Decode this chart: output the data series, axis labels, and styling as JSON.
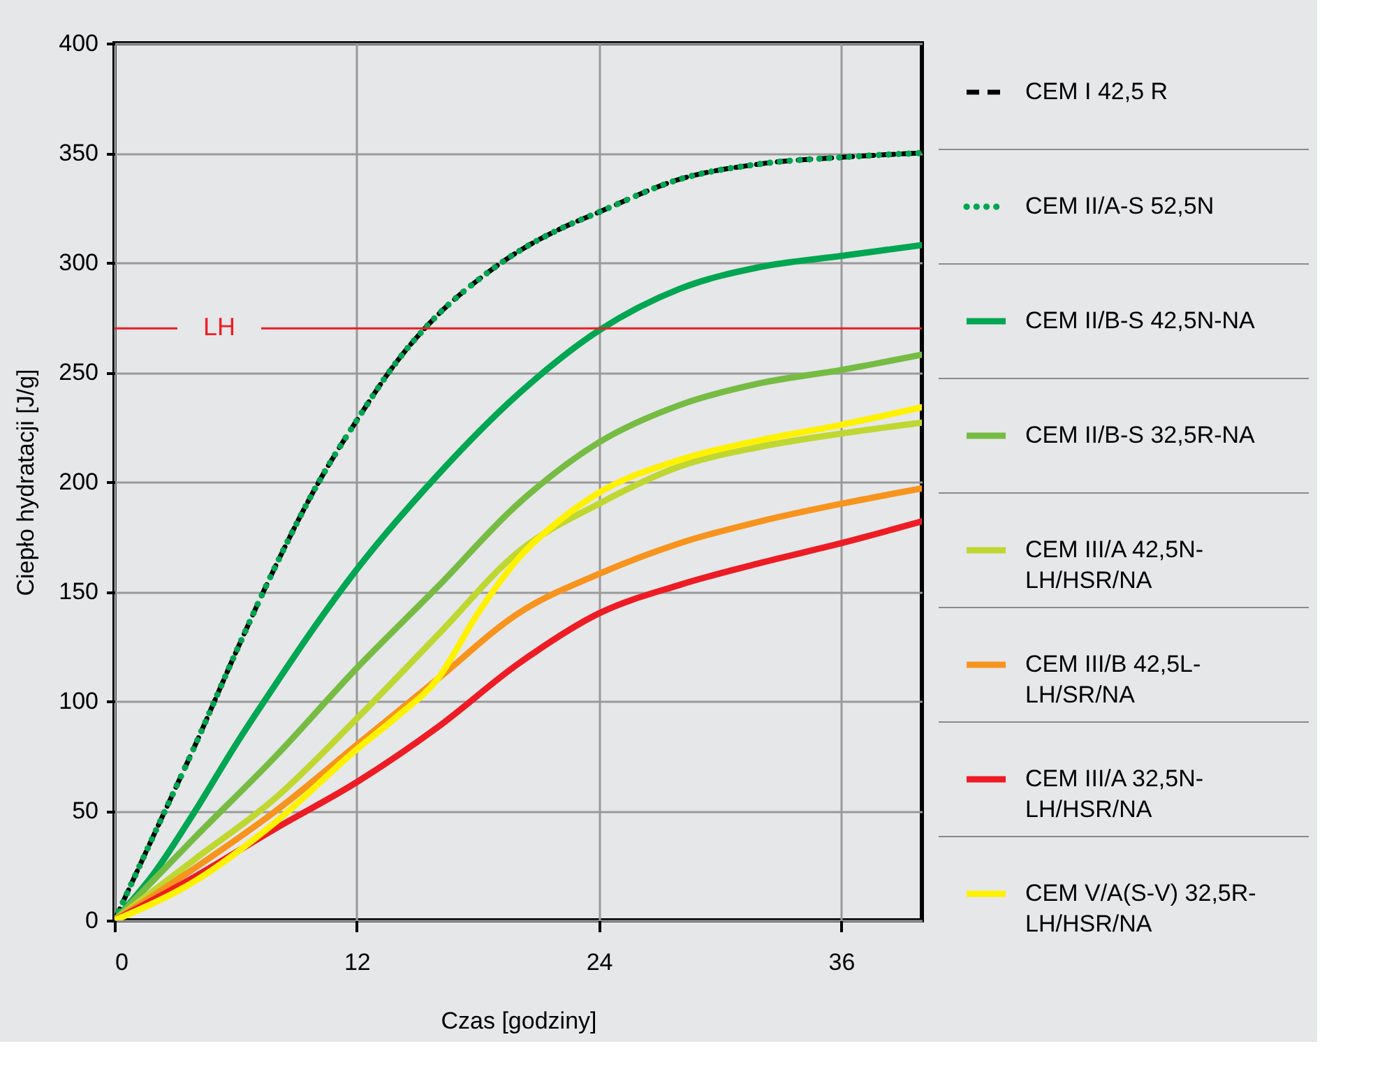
{
  "chart_data": {
    "type": "line",
    "xlabel": "Czas [godziny]",
    "ylabel": "Ciepło hydratacji [J/g]",
    "xlim": [
      0,
      40
    ],
    "ylim": [
      0,
      400
    ],
    "xticks": [
      0,
      12,
      24,
      36
    ],
    "yticks": [
      0,
      50,
      100,
      150,
      200,
      250,
      300,
      350,
      400
    ],
    "grid": true,
    "legend": "right",
    "ref_lines": [
      {
        "axis": "y",
        "value": 270,
        "label": "LH",
        "color": "#ed1c24"
      }
    ],
    "series": [
      {
        "name": "CEM I 42,5 R",
        "color": "#000000",
        "line_style": "dashed",
        "x": [
          0,
          2,
          4,
          6,
          8,
          10,
          12,
          14,
          16,
          18,
          20,
          22,
          24,
          28,
          32,
          36,
          40
        ],
        "values": [
          0,
          40,
          80,
          122,
          162,
          198,
          228,
          255,
          276,
          292,
          305,
          315,
          323,
          338,
          345,
          348,
          350
        ]
      },
      {
        "name": "CEM II/A-S 52,5N",
        "color": "#00a651",
        "line_style": "dotted",
        "x": [
          0,
          2,
          4,
          6,
          8,
          10,
          12,
          14,
          16,
          18,
          20,
          22,
          24,
          28,
          32,
          36,
          40
        ],
        "values": [
          0,
          40,
          80,
          122,
          162,
          198,
          228,
          255,
          276,
          292,
          305,
          315,
          323,
          338,
          345,
          348,
          350
        ]
      },
      {
        "name": "CEM II/B-S 42,5N-NA",
        "color": "#00a651",
        "line_style": "solid",
        "x": [
          0,
          2,
          4,
          6,
          8,
          10,
          12,
          16,
          20,
          24,
          28,
          32,
          36,
          40
        ],
        "values": [
          0,
          22,
          50,
          80,
          108,
          135,
          160,
          203,
          240,
          269,
          288,
          298,
          303,
          308
        ]
      },
      {
        "name": "CEM II/B-S 32,5R-NA",
        "color": "#76bc43",
        "line_style": "solid",
        "x": [
          0,
          4,
          8,
          12,
          16,
          20,
          24,
          28,
          32,
          36,
          40
        ],
        "values": [
          0,
          38,
          75,
          115,
          152,
          190,
          218,
          235,
          245,
          251,
          258
        ]
      },
      {
        "name": "CEM III/A 42,5N-LH/HSR/NA",
        "color": "#bfd730",
        "line_style": "solid",
        "x": [
          0,
          4,
          8,
          12,
          16,
          20,
          24,
          28,
          32,
          36,
          40
        ],
        "values": [
          0,
          28,
          56,
          92,
          130,
          168,
          190,
          207,
          216,
          222,
          227
        ]
      },
      {
        "name": "CEM III/B 42,5L-LH/SR/NA",
        "color": "#f7941d",
        "line_style": "solid",
        "x": [
          0,
          4,
          8,
          12,
          16,
          20,
          24,
          28,
          32,
          36,
          40
        ],
        "values": [
          0,
          24,
          50,
          80,
          110,
          140,
          158,
          172,
          182,
          190,
          197
        ]
      },
      {
        "name": "CEM III/A 32,5N-LH/HSR/NA",
        "color": "#ed1c24",
        "line_style": "solid",
        "x": [
          0,
          4,
          8,
          12,
          16,
          20,
          24,
          28,
          32,
          36,
          40
        ],
        "values": [
          0,
          20,
          42,
          63,
          88,
          117,
          140,
          153,
          163,
          172,
          182
        ]
      },
      {
        "name": "CEM V/A(S-V) 32,5R-LH/HSR/NA",
        "color": "#fff200",
        "line_style": "solid",
        "x": [
          0,
          4,
          8,
          12,
          14,
          16,
          18,
          20,
          22,
          24,
          28,
          32,
          36,
          40
        ],
        "values": [
          0,
          18,
          45,
          78,
          93,
          110,
          140,
          165,
          182,
          195,
          210,
          219,
          226,
          234
        ]
      }
    ]
  }
}
